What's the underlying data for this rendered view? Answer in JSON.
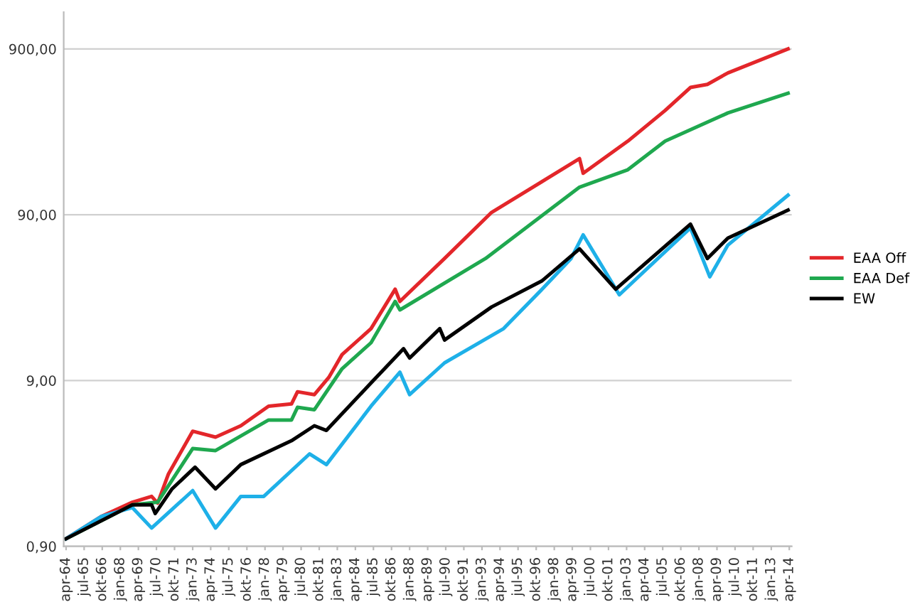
{
  "chart_data": {
    "type": "line",
    "log": "y",
    "grid": "y",
    "legend": "right",
    "marker": "none",
    "line_style": "solid",
    "xlim": [
      "1964-02",
      "2014-06"
    ],
    "ylim": [
      0.9,
      1500
    ],
    "yticks": [
      {
        "value": 0.9,
        "label": "0,90"
      },
      {
        "value": 9,
        "label": "9,00"
      },
      {
        "value": 90,
        "label": "90,00"
      },
      {
        "value": 900,
        "label": "900,00"
      }
    ],
    "xticks": [
      {
        "value": "1964-04",
        "label": "apr-64"
      },
      {
        "value": "1965-07",
        "label": "jul-65"
      },
      {
        "value": "1966-10",
        "label": "okt-66"
      },
      {
        "value": "1968-01",
        "label": "jan-68"
      },
      {
        "value": "1969-04",
        "label": "apr-69"
      },
      {
        "value": "1970-07",
        "label": "jul-70"
      },
      {
        "value": "1971-10",
        "label": "okt-71"
      },
      {
        "value": "1973-01",
        "label": "jan-73"
      },
      {
        "value": "1974-04",
        "label": "apr-74"
      },
      {
        "value": "1975-07",
        "label": "jul-75"
      },
      {
        "value": "1976-10",
        "label": "okt-76"
      },
      {
        "value": "1978-01",
        "label": "jan-78"
      },
      {
        "value": "1979-04",
        "label": "apr-79"
      },
      {
        "value": "1980-07",
        "label": "jul-80"
      },
      {
        "value": "1981-10",
        "label": "okt-81"
      },
      {
        "value": "1983-01",
        "label": "jan-83"
      },
      {
        "value": "1984-04",
        "label": "apr-84"
      },
      {
        "value": "1985-07",
        "label": "jul-85"
      },
      {
        "value": "1986-10",
        "label": "okt-86"
      },
      {
        "value": "1988-01",
        "label": "jan-88"
      },
      {
        "value": "1989-04",
        "label": "apr-89"
      },
      {
        "value": "1990-07",
        "label": "jul-90"
      },
      {
        "value": "1991-10",
        "label": "okt-91"
      },
      {
        "value": "1993-01",
        "label": "jan-93"
      },
      {
        "value": "1994-04",
        "label": "apr-94"
      },
      {
        "value": "1995-07",
        "label": "jul-95"
      },
      {
        "value": "1996-10",
        "label": "okt-96"
      },
      {
        "value": "1998-01",
        "label": "jan-98"
      },
      {
        "value": "1999-04",
        "label": "apr-99"
      },
      {
        "value": "2000-07",
        "label": "jul-00"
      },
      {
        "value": "2001-10",
        "label": "okt-01"
      },
      {
        "value": "2003-01",
        "label": "jan-03"
      },
      {
        "value": "2004-04",
        "label": "apr-04"
      },
      {
        "value": "2005-07",
        "label": "jul-05"
      },
      {
        "value": "2006-10",
        "label": "okt-06"
      },
      {
        "value": "2008-01",
        "label": "jan-08"
      },
      {
        "value": "2009-04",
        "label": "apr-09"
      },
      {
        "value": "2010-07",
        "label": "jul-10"
      },
      {
        "value": "2011-10",
        "label": "okt-11"
      },
      {
        "value": "2013-01",
        "label": "jan-13"
      },
      {
        "value": "2014-04",
        "label": "apr-14"
      }
    ],
    "series": [
      {
        "name": "EAA Off",
        "color": "#e3262a",
        "x": [
          "1964-04",
          "1966-09",
          "1968-11",
          "1970-03",
          "1970-08",
          "1971-05",
          "1973-01",
          "1974-08",
          "1976-05",
          "1978-04",
          "1979-11",
          "1980-04",
          "1981-06",
          "1982-06",
          "1983-05",
          "1985-05",
          "1987-01",
          "1987-05",
          "1990-06",
          "1993-09",
          "1999-10",
          "2000-01",
          "2003-02",
          "2005-09",
          "2007-06",
          "2008-08",
          "2010-01",
          "2014-03"
        ],
        "values": [
          1.0,
          1.36,
          1.66,
          1.8,
          1.64,
          2.46,
          4.45,
          4.1,
          4.8,
          6.3,
          6.5,
          7.7,
          7.4,
          9.4,
          12.9,
          18.5,
          32,
          27,
          49,
          93,
          196,
          160,
          250,
          383,
          527,
          550,
          645,
          900
        ]
      },
      {
        "name": "EAA Def",
        "color": "#1fa84f",
        "x": [
          "1964-04",
          "1968-11",
          "1970-08",
          "1973-01",
          "1974-08",
          "1978-04",
          "1979-11",
          "1980-04",
          "1981-06",
          "1983-05",
          "1985-05",
          "1987-01",
          "1987-05",
          "1993-04",
          "1999-10",
          "2003-02",
          "2005-09",
          "2010-01",
          "2014-03"
        ],
        "values": [
          1.0,
          1.6,
          1.66,
          3.5,
          3.4,
          5.2,
          5.2,
          6.2,
          6.0,
          10.6,
          15.2,
          27,
          24,
          49,
          132,
          168,
          250,
          370,
          486
        ]
      },
      {
        "color": "#1eb0e8",
        "x": [
          "1964-04",
          "1966-09",
          "1968-11",
          "1970-03",
          "1973-01",
          "1974-08",
          "1976-05",
          "1977-12",
          "1981-02",
          "1982-04",
          "1985-05",
          "1987-05",
          "1988-01",
          "1990-06",
          "1994-07",
          "1997-03",
          "1999-03",
          "2000-01",
          "2002-07",
          "2007-06",
          "2008-10",
          "2010-01",
          "2014-03"
        ],
        "values": [
          1.0,
          1.36,
          1.54,
          1.16,
          1.95,
          1.16,
          1.8,
          1.8,
          3.25,
          2.8,
          6.3,
          10.1,
          7.4,
          11.5,
          18.5,
          32,
          49,
          68,
          29.6,
          75,
          38,
          59,
          118
        ]
      },
      {
        "name": "EW",
        "color": "#000000",
        "x": [
          "1964-04",
          "1968-11",
          "1970-03",
          "1970-06",
          "1971-08",
          "1973-03",
          "1974-08",
          "1976-05",
          "1979-11",
          "1981-06",
          "1982-04",
          "1985-05",
          "1987-08",
          "1988-01",
          "1990-02",
          "1990-06",
          "1993-09",
          "1997-03",
          "1999-10",
          "2002-04",
          "2007-06",
          "2008-08",
          "2010-01",
          "2014-03"
        ],
        "values": [
          1.0,
          1.6,
          1.6,
          1.42,
          2.0,
          2.7,
          2.0,
          2.8,
          3.9,
          4.8,
          4.5,
          8.7,
          14,
          12.3,
          18.5,
          15.8,
          25,
          36,
          56,
          32,
          79,
          49,
          65,
          96
        ]
      }
    ]
  }
}
